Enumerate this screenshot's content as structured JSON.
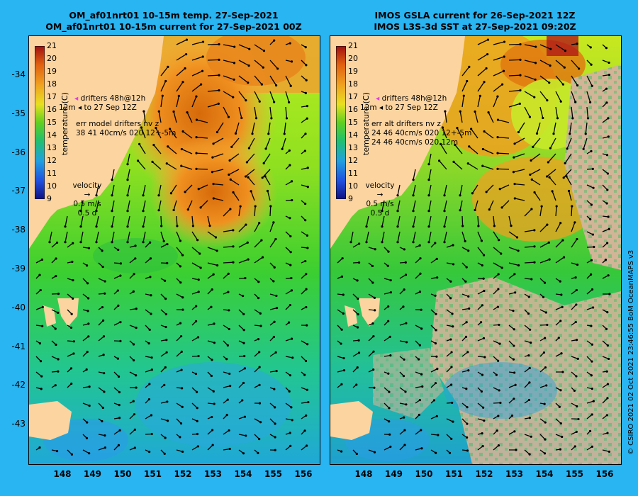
{
  "left": {
    "title_line1": "OM_af01nrt01 10-15m temp. 27-Sep-2021",
    "title_line2": "OM_af01nrt01 10-15m current for 27-Sep-2021 00Z",
    "legend": {
      "drifters": "drifters 48h@12h",
      "depth_to": "12m",
      "to_date": "to 27 Sep 12Z",
      "err_line1": "err model drifters nv z",
      "err_line2": "38 41 40cm/s 020 12+-5m"
    }
  },
  "right": {
    "title_line1": "IMOS GSLA current for 26-Sep-2021 12Z",
    "title_line2": "IMOS L3S-3d SST at 27-Sep-2021 09:20Z",
    "legend": {
      "drifters": "drifters 48h@12h",
      "depth_to": "12m",
      "to_date": "to 27 Sep 12Z",
      "err_line1": "err alt drifters nv z",
      "err_line2": "24 46 40cm/s 020 12+-5m",
      "err_line3": "24 46 40cm/s 020 12m"
    }
  },
  "colorbar": {
    "label": "temperature (C)",
    "ticks": [
      "21",
      "20",
      "19",
      "18",
      "17",
      "16",
      "15",
      "14",
      "13",
      "12",
      "11",
      "10",
      "9"
    ]
  },
  "velocity_key": {
    "label": "velocity",
    "speed": "0.5 m/s",
    "time": "0.5 d"
  },
  "axes": {
    "lat_ticks": [
      "-34",
      "-35",
      "-36",
      "-37",
      "-38",
      "-39",
      "-40",
      "-41",
      "-42",
      "-43"
    ],
    "lon_ticks": [
      "148",
      "149",
      "150",
      "151",
      "152",
      "153",
      "154",
      "155",
      "156"
    ]
  },
  "credit": "© CSIRO 2021  02 Oct 2021 23:46:55 BoM OceanMAPS v3",
  "colors": {
    "background": "#29b4f2",
    "land": "#fcd4a0",
    "cloud_mask": "#d2b496"
  }
}
